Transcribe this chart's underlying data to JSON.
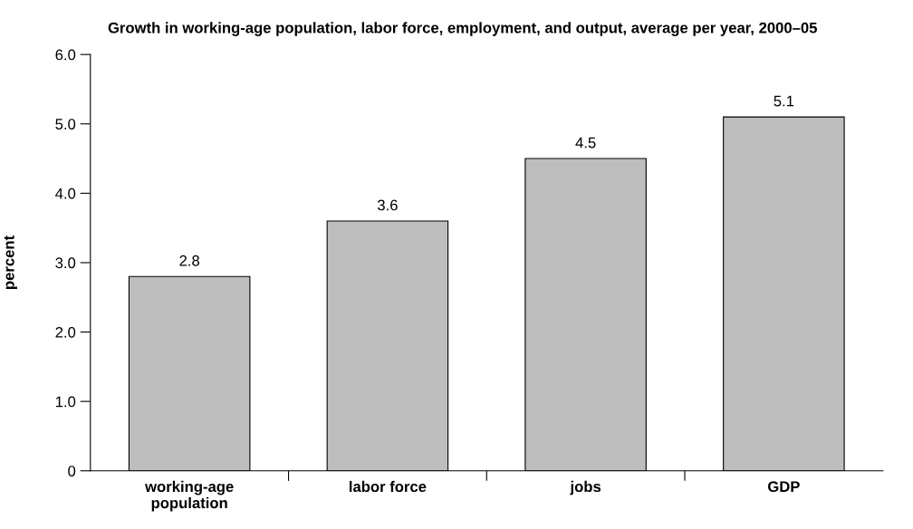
{
  "chart_data": {
    "type": "bar",
    "title": "Growth in working-age population, labor force, employment, and output, average per year, 2000–05",
    "ylabel": "percent",
    "categories": [
      "working-age\npopulation",
      "labor force",
      "jobs",
      "GDP"
    ],
    "values": [
      2.8,
      3.6,
      4.5,
      5.1
    ],
    "color": "#bebebe",
    "data_labels": true,
    "ylim": [
      0,
      6
    ],
    "yticks": [
      0,
      {
        "value": 1,
        "label": "1.0"
      },
      {
        "value": 2,
        "label": "2.0"
      },
      {
        "value": 3,
        "label": "3.0"
      },
      {
        "value": 4,
        "label": "4.0"
      },
      {
        "value": 5,
        "label": "5.0"
      },
      {
        "value": 6,
        "label": "6.0"
      }
    ],
    "grid": false
  }
}
